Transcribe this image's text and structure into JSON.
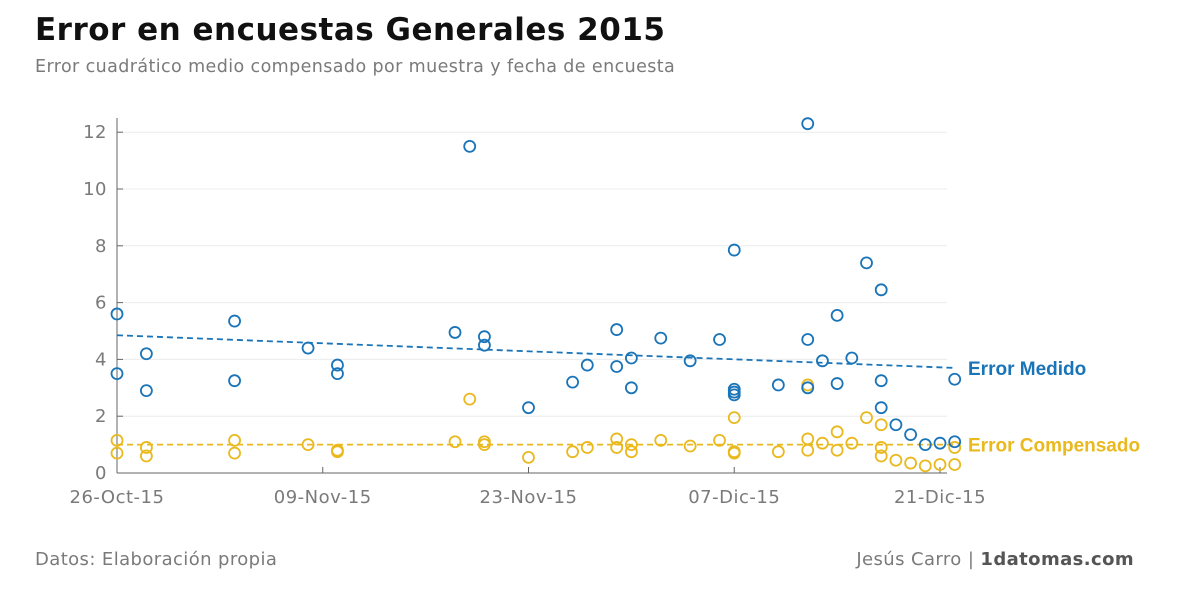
{
  "header": {
    "title": "Error en encuestas Generales 2015",
    "subtitle": "Error cuadrático medio compensado por muestra y fecha de encuesta"
  },
  "footer": {
    "source": "Datos: Elaboración propia",
    "author": "Jesús Carro |",
    "brand": "1datomas.com"
  },
  "colors": {
    "medido": "#1a74b8",
    "compensado": "#e9b91e",
    "axis": "#666666",
    "grid": "#ececec"
  },
  "chart_data": {
    "type": "scatter",
    "title": "Error en encuestas Generales 2015",
    "subtitle": "Error cuadrático medio compensado por muestra y fecha de encuesta",
    "xlabel": "",
    "ylabel": "",
    "x_ticks": [
      "26-Oct-15",
      "09-Nov-15",
      "23-Nov-15",
      "07-Dic-15",
      "21-Dic-15"
    ],
    "xlim": [
      "2015-10-26",
      "2015-12-21"
    ],
    "ylim": [
      0,
      12.5
    ],
    "y_ticks": [
      0,
      2,
      4,
      6,
      8,
      10,
      12
    ],
    "grid": true,
    "series": [
      {
        "name": "Error Medido",
        "color": "#1a74b8",
        "points": [
          [
            "2015-10-26",
            3.5
          ],
          [
            "2015-10-26",
            5.6
          ],
          [
            "2015-10-28",
            4.2
          ],
          [
            "2015-10-28",
            2.9
          ],
          [
            "2015-11-03",
            5.35
          ],
          [
            "2015-11-03",
            3.25
          ],
          [
            "2015-11-08",
            4.4
          ],
          [
            "2015-11-10",
            3.8
          ],
          [
            "2015-11-10",
            3.5
          ],
          [
            "2015-11-18",
            4.95
          ],
          [
            "2015-11-19",
            11.5
          ],
          [
            "2015-11-20",
            4.8
          ],
          [
            "2015-11-20",
            4.5
          ],
          [
            "2015-11-23",
            2.3
          ],
          [
            "2015-11-26",
            3.2
          ],
          [
            "2015-11-27",
            3.8
          ],
          [
            "2015-11-29",
            5.05
          ],
          [
            "2015-11-29",
            3.75
          ],
          [
            "2015-11-30",
            4.05
          ],
          [
            "2015-11-30",
            3.0
          ],
          [
            "2015-12-02",
            4.75
          ],
          [
            "2015-12-04",
            3.95
          ],
          [
            "2015-12-06",
            4.7
          ],
          [
            "2015-12-07",
            7.85
          ],
          [
            "2015-12-07",
            2.95
          ],
          [
            "2015-12-07",
            2.85
          ],
          [
            "2015-12-07",
            2.75
          ],
          [
            "2015-12-10",
            3.1
          ],
          [
            "2015-12-12",
            12.3
          ],
          [
            "2015-12-12",
            4.7
          ],
          [
            "2015-12-12",
            3.0
          ],
          [
            "2015-12-13",
            3.95
          ],
          [
            "2015-12-14",
            5.55
          ],
          [
            "2015-12-14",
            3.15
          ],
          [
            "2015-12-15",
            4.05
          ],
          [
            "2015-12-16",
            7.4
          ],
          [
            "2015-12-17",
            6.45
          ],
          [
            "2015-12-17",
            3.25
          ],
          [
            "2015-12-17",
            2.3
          ],
          [
            "2015-12-18",
            1.7
          ],
          [
            "2015-12-19",
            1.35
          ],
          [
            "2015-12-20",
            1.0
          ],
          [
            "2015-12-21",
            1.05
          ],
          [
            "2015-12-22",
            3.3
          ],
          [
            "2015-12-22",
            1.1
          ]
        ],
        "trend": [
          [
            "2015-10-26",
            4.85
          ],
          [
            "2015-12-22",
            3.7
          ]
        ]
      },
      {
        "name": "Error Compensado",
        "color": "#e9b91e",
        "points": [
          [
            "2015-10-26",
            1.15
          ],
          [
            "2015-10-26",
            0.7
          ],
          [
            "2015-10-28",
            0.9
          ],
          [
            "2015-10-28",
            0.6
          ],
          [
            "2015-11-03",
            1.15
          ],
          [
            "2015-11-03",
            0.7
          ],
          [
            "2015-11-08",
            1.0
          ],
          [
            "2015-11-10",
            0.8
          ],
          [
            "2015-11-10",
            0.75
          ],
          [
            "2015-11-18",
            1.1
          ],
          [
            "2015-11-19",
            2.6
          ],
          [
            "2015-11-20",
            1.1
          ],
          [
            "2015-11-20",
            1.0
          ],
          [
            "2015-11-23",
            0.55
          ],
          [
            "2015-11-26",
            0.75
          ],
          [
            "2015-11-27",
            0.9
          ],
          [
            "2015-11-29",
            1.2
          ],
          [
            "2015-11-29",
            0.9
          ],
          [
            "2015-11-30",
            1.0
          ],
          [
            "2015-11-30",
            0.75
          ],
          [
            "2015-12-02",
            1.15
          ],
          [
            "2015-12-04",
            0.95
          ],
          [
            "2015-12-06",
            1.15
          ],
          [
            "2015-12-07",
            1.95
          ],
          [
            "2015-12-07",
            0.75
          ],
          [
            "2015-12-07",
            0.7
          ],
          [
            "2015-12-10",
            0.75
          ],
          [
            "2015-12-12",
            3.1
          ],
          [
            "2015-12-12",
            1.2
          ],
          [
            "2015-12-12",
            0.8
          ],
          [
            "2015-12-13",
            1.05
          ],
          [
            "2015-12-14",
            1.45
          ],
          [
            "2015-12-14",
            0.8
          ],
          [
            "2015-12-15",
            1.05
          ],
          [
            "2015-12-16",
            1.95
          ],
          [
            "2015-12-17",
            1.7
          ],
          [
            "2015-12-17",
            0.9
          ],
          [
            "2015-12-17",
            0.6
          ],
          [
            "2015-12-18",
            0.45
          ],
          [
            "2015-12-19",
            0.35
          ],
          [
            "2015-12-20",
            0.25
          ],
          [
            "2015-12-21",
            0.3
          ],
          [
            "2015-12-22",
            0.9
          ],
          [
            "2015-12-22",
            0.3
          ]
        ],
        "trend": [
          [
            "2015-10-26",
            1.0
          ],
          [
            "2015-12-22",
            1.0
          ]
        ]
      }
    ]
  }
}
